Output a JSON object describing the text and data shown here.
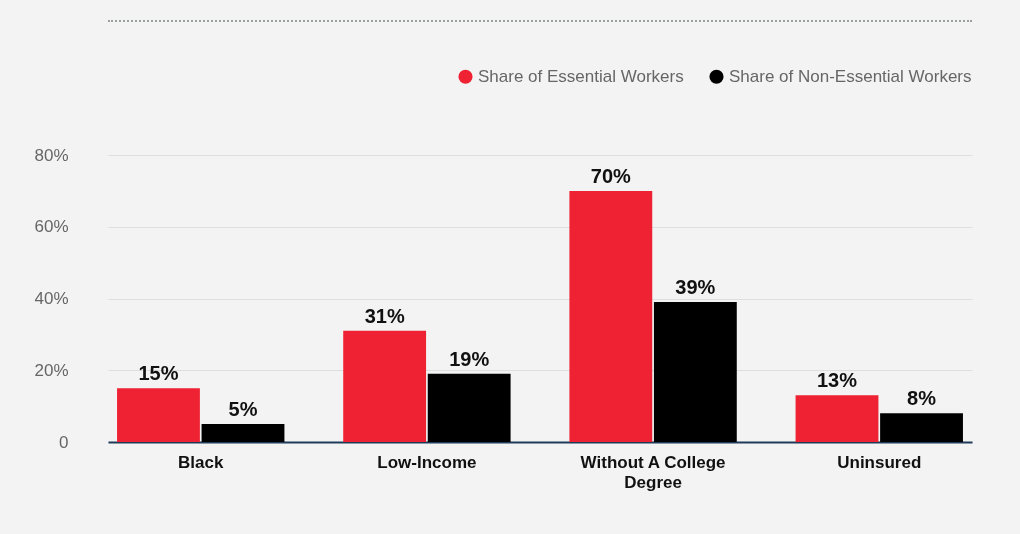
{
  "chart_data": {
    "type": "bar",
    "categories": [
      "Black",
      "Low-Income",
      "Without A College Degree",
      "Uninsured"
    ],
    "series": [
      {
        "name": "Share of Essential Workers",
        "color": "#ee2233",
        "values": [
          15,
          31,
          70,
          13
        ],
        "value_labels": [
          "15%",
          "31%",
          "70%",
          "13%"
        ]
      },
      {
        "name": "Share of Non-Essential Workers",
        "color": "#000000",
        "values": [
          5,
          19,
          39,
          8
        ],
        "value_labels": [
          "5%",
          "19%",
          "39%",
          "8%"
        ]
      }
    ],
    "ylim": [
      0,
      80
    ],
    "yticks": [
      0,
      {
        "value": 20,
        "label": "20%"
      },
      {
        "value": 40,
        "label": "40%"
      },
      {
        "value": 60,
        "label": "60%"
      },
      {
        "value": 80,
        "label": "80%"
      }
    ],
    "grid": "y",
    "legend": "top right"
  }
}
